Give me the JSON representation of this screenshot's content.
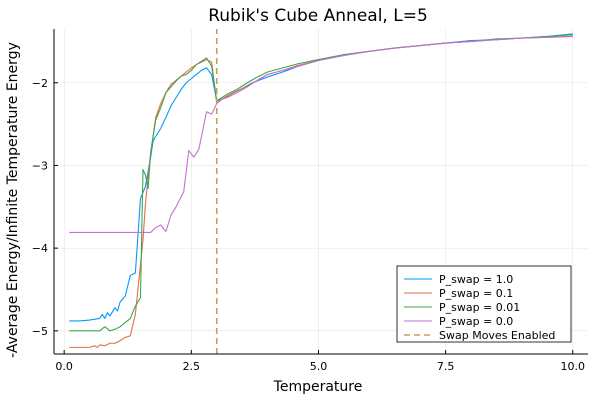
{
  "chart_data": {
    "type": "line",
    "title": "Rubik's Cube Anneal, L=5",
    "xlabel": "Temperature",
    "ylabel": "-Average Energy/Infinite Temperature Energy",
    "xlim": [
      -0.2,
      10.3
    ],
    "ylim": [
      -5.28,
      -1.35
    ],
    "xticks": [
      0.0,
      2.5,
      5.0,
      7.5,
      10.0
    ],
    "xtick_labels": [
      "0.0",
      "2.5",
      "5.0",
      "7.5",
      "10.0"
    ],
    "yticks": [
      -5,
      -4,
      -3,
      -2
    ],
    "ytick_labels": [
      "−5",
      "−4",
      "−3",
      "−2"
    ],
    "grid": true,
    "legend_position": "bottom-right",
    "series": [
      {
        "name": "P_swap = 1.0",
        "color": "#009AFA",
        "dashed": false,
        "x": [
          0.1,
          0.3,
          0.5,
          0.7,
          0.75,
          0.8,
          0.85,
          0.9,
          1.0,
          1.05,
          1.1,
          1.2,
          1.3,
          1.4,
          1.5,
          1.6,
          1.7,
          1.75,
          1.8,
          1.9,
          2.0,
          2.1,
          2.2,
          2.3,
          2.4,
          2.5,
          2.6,
          2.7,
          2.8,
          2.9,
          3.0,
          3.1,
          3.2,
          3.3,
          3.5,
          3.7,
          4.0,
          4.3,
          4.6,
          5.0,
          5.5,
          6.0,
          6.5,
          7.0,
          7.5,
          8.0,
          8.5,
          9.0,
          9.5,
          10.0
        ],
        "y": [
          -4.88,
          -4.88,
          -4.87,
          -4.85,
          -4.8,
          -4.85,
          -4.78,
          -4.82,
          -4.72,
          -4.76,
          -4.65,
          -4.58,
          -4.33,
          -4.3,
          -3.4,
          -3.25,
          -2.9,
          -2.7,
          -2.65,
          -2.55,
          -2.42,
          -2.28,
          -2.18,
          -2.08,
          -2.0,
          -1.95,
          -1.9,
          -1.85,
          -1.82,
          -1.9,
          -2.22,
          -2.2,
          -2.17,
          -2.13,
          -2.07,
          -2.0,
          -1.93,
          -1.87,
          -1.8,
          -1.73,
          -1.66,
          -1.62,
          -1.58,
          -1.55,
          -1.52,
          -1.49,
          -1.48,
          -1.46,
          -1.44,
          -1.41
        ]
      },
      {
        "name": "P_swap = 0.1",
        "color": "#E26F46",
        "dashed": false,
        "x": [
          0.1,
          0.3,
          0.5,
          0.6,
          0.65,
          0.7,
          0.8,
          0.9,
          1.0,
          1.1,
          1.2,
          1.3,
          1.4,
          1.5,
          1.55,
          1.6,
          1.7,
          1.8,
          1.9,
          2.0,
          2.1,
          2.2,
          2.3,
          2.4,
          2.5,
          2.6,
          2.7,
          2.8,
          2.9,
          3.0,
          3.1,
          3.2,
          3.4,
          3.6,
          3.8,
          4.0,
          4.3,
          4.6,
          5.0,
          5.5,
          6.0,
          6.5,
          7.0,
          7.5,
          8.0,
          8.5,
          9.0,
          9.5,
          10.0
        ],
        "y": [
          -5.2,
          -5.2,
          -5.2,
          -5.18,
          -5.2,
          -5.17,
          -5.18,
          -5.15,
          -5.15,
          -5.12,
          -5.08,
          -5.06,
          -4.8,
          -4.2,
          -3.9,
          -3.45,
          -2.85,
          -2.42,
          -2.25,
          -2.12,
          -2.02,
          -1.97,
          -1.92,
          -1.87,
          -1.82,
          -1.78,
          -1.75,
          -1.72,
          -1.75,
          -2.25,
          -2.2,
          -2.16,
          -2.1,
          -2.04,
          -1.97,
          -1.9,
          -1.85,
          -1.79,
          -1.73,
          -1.67,
          -1.62,
          -1.58,
          -1.55,
          -1.52,
          -1.5,
          -1.48,
          -1.46,
          -1.45,
          -1.44
        ]
      },
      {
        "name": "P_swap = 0.01",
        "color": "#3EA44E",
        "dashed": false,
        "x": [
          0.1,
          0.3,
          0.5,
          0.7,
          0.8,
          0.9,
          1.0,
          1.1,
          1.2,
          1.3,
          1.4,
          1.5,
          1.55,
          1.6,
          1.65,
          1.7,
          1.8,
          1.9,
          2.0,
          2.1,
          2.2,
          2.3,
          2.4,
          2.5,
          2.6,
          2.7,
          2.8,
          2.9,
          3.0,
          3.1,
          3.2,
          3.4,
          3.6,
          3.8,
          4.0,
          4.3,
          4.6,
          5.0,
          5.5,
          6.0,
          6.5,
          7.0,
          7.5,
          8.0,
          8.5,
          9.0,
          9.5,
          10.0
        ],
        "y": [
          -5.0,
          -5.0,
          -5.0,
          -5.0,
          -4.95,
          -5.0,
          -4.98,
          -4.95,
          -4.9,
          -4.85,
          -4.7,
          -4.6,
          -3.05,
          -3.12,
          -3.28,
          -2.85,
          -2.45,
          -2.3,
          -2.12,
          -2.05,
          -1.98,
          -1.92,
          -1.9,
          -1.85,
          -1.78,
          -1.74,
          -1.7,
          -1.8,
          -2.22,
          -2.18,
          -2.14,
          -2.08,
          -2.0,
          -1.93,
          -1.87,
          -1.82,
          -1.77,
          -1.72,
          -1.66,
          -1.62,
          -1.58,
          -1.55,
          -1.52,
          -1.5,
          -1.47,
          -1.46,
          -1.44,
          -1.42
        ]
      },
      {
        "name": "P_swap = 0.0",
        "color": "#C271D2",
        "dashed": false,
        "x": [
          0.1,
          0.5,
          1.0,
          1.5,
          1.7,
          1.8,
          1.9,
          2.0,
          2.1,
          2.2,
          2.35,
          2.45,
          2.55,
          2.65,
          2.8,
          2.9,
          3.0,
          3.1,
          3.2,
          3.4,
          3.6,
          3.8,
          4.0,
          4.3,
          4.6,
          5.0,
          5.5,
          6.0,
          6.5,
          7.0,
          7.5,
          8.0,
          8.5,
          9.0,
          9.5,
          10.0
        ],
        "y": [
          -3.81,
          -3.81,
          -3.81,
          -3.81,
          -3.81,
          -3.75,
          -3.72,
          -3.8,
          -3.6,
          -3.5,
          -3.32,
          -2.82,
          -2.9,
          -2.8,
          -2.35,
          -2.38,
          -2.25,
          -2.2,
          -2.18,
          -2.12,
          -2.05,
          -1.97,
          -1.9,
          -1.85,
          -1.8,
          -1.73,
          -1.67,
          -1.62,
          -1.58,
          -1.55,
          -1.52,
          -1.5,
          -1.48,
          -1.46,
          -1.45,
          -1.44
        ]
      },
      {
        "name": "Swap Moves Enabled",
        "color": "#C3A05A",
        "dashed": true,
        "x": [
          3.0,
          3.0
        ],
        "y": [
          -5.28,
          -1.35
        ]
      }
    ]
  }
}
